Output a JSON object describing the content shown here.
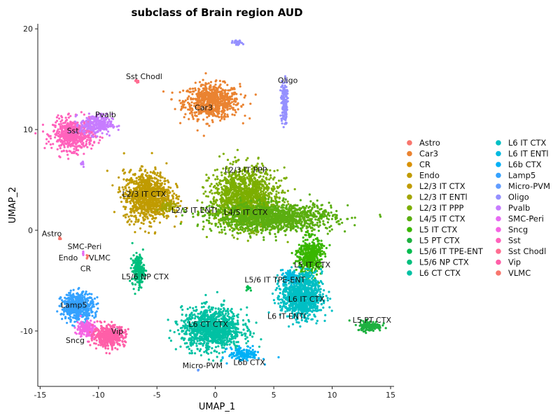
{
  "chart_data": {
    "type": "scatter",
    "title": "subclass of Brain region AUD",
    "xlabel": "UMAP_1",
    "ylabel": "UMAP_2",
    "xlim": [
      -15.2,
      15.3
    ],
    "ylim": [
      -15.5,
      20.5
    ],
    "xticks": [
      -15,
      -10,
      -5,
      0,
      5,
      10,
      15
    ],
    "yticks": [
      -10,
      0,
      10,
      20
    ],
    "grid": false,
    "legend_position": "right",
    "series": [
      {
        "name": "Astro",
        "color": "#F8766D"
      },
      {
        "name": "Car3",
        "color": "#EA8331"
      },
      {
        "name": "CR",
        "color": "#D89000"
      },
      {
        "name": "Endo",
        "color": "#C09B00"
      },
      {
        "name": "L2/3 IT CTX",
        "color": "#C09B00"
      },
      {
        "name": "L2/3 IT ENTl",
        "color": "#A3A500"
      },
      {
        "name": "L2/3 IT PPP",
        "color": "#7CAE00"
      },
      {
        "name": "L4/5 IT CTX",
        "color": "#5BAE10"
      },
      {
        "name": "L5 IT CTX",
        "color": "#39B600"
      },
      {
        "name": "L5 PT CTX",
        "color": "#1EB040"
      },
      {
        "name": "L5/6 IT TPE-ENT",
        "color": "#00BB4E"
      },
      {
        "name": "L5/6 NP CTX",
        "color": "#00BF7D"
      },
      {
        "name": "L6 CT CTX",
        "color": "#00C1A3"
      },
      {
        "name": "L6 IT CTX",
        "color": "#00BFC4"
      },
      {
        "name": "L6 IT ENTl",
        "color": "#00BAE0"
      },
      {
        "name": "L6b CTX",
        "color": "#00B0F6"
      },
      {
        "name": "Lamp5",
        "color": "#35A2FF"
      },
      {
        "name": "Micro-PVM",
        "color": "#619CFF"
      },
      {
        "name": "Oligo",
        "color": "#9590FF"
      },
      {
        "name": "Pvalb",
        "color": "#C77CFF"
      },
      {
        "name": "SMC-Peri",
        "color": "#E76BF3"
      },
      {
        "name": "Sncg",
        "color": "#F564E3"
      },
      {
        "name": "Sst",
        "color": "#FF62BC"
      },
      {
        "name": "Sst Chodl",
        "color": "#FF6C91"
      },
      {
        "name": "Vip",
        "color": "#FF5FA8"
      },
      {
        "name": "VLMC",
        "color": "#F8766D"
      }
    ],
    "clusters": [
      {
        "name": "Car3",
        "color": "#EA8331",
        "x": -0.3,
        "y": 12.8,
        "sx": 1.4,
        "sy": 1.0,
        "n": 700
      },
      {
        "name": "Oligo",
        "color": "#9590FF",
        "x": 5.9,
        "y": 12.7,
        "sx": 0.15,
        "sy": 1.3,
        "n": 160
      },
      {
        "name": "Oligo",
        "color": "#9590FF",
        "x": 1.9,
        "y": 18.6,
        "sx": 0.25,
        "sy": 0.15,
        "n": 30
      },
      {
        "name": "Sst Chodl",
        "color": "#FF6C91",
        "x": -6.7,
        "y": 14.8,
        "sx": 0.12,
        "sy": 0.1,
        "n": 10
      },
      {
        "name": "Sst",
        "color": "#FF62BC",
        "x": -12.2,
        "y": 9.5,
        "sx": 1.0,
        "sy": 0.9,
        "n": 550
      },
      {
        "name": "Pvalb",
        "color": "#C77CFF",
        "x": -10.2,
        "y": 10.5,
        "sx": 0.8,
        "sy": 0.6,
        "n": 260
      },
      {
        "name": "Pvalb",
        "color": "#C77CFF",
        "x": -11.4,
        "y": 6.7,
        "sx": 0.12,
        "sy": 0.25,
        "n": 10
      },
      {
        "name": "L2/3 IT CTX",
        "color": "#C09B00",
        "x": -5.8,
        "y": 3.4,
        "sx": 1.2,
        "sy": 1.4,
        "n": 1000
      },
      {
        "name": "L2/3 IT ENTl",
        "color": "#A3A500",
        "x": -4.0,
        "y": 2.3,
        "sx": 0.4,
        "sy": 0.4,
        "n": 60
      },
      {
        "name": "L2/3 IT PPP",
        "color": "#7CAE00",
        "x": 2.5,
        "y": 3.2,
        "sx": 1.7,
        "sy": 1.7,
        "n": 1400
      },
      {
        "name": "L4/5 IT CTX",
        "color": "#5BAE10",
        "x": 5.0,
        "y": 1.3,
        "sx": 3.0,
        "sy": 0.8,
        "n": 1300
      },
      {
        "name": "L5 IT CTX",
        "color": "#39B600",
        "x": 8.1,
        "y": -2.6,
        "sx": 0.6,
        "sy": 1.1,
        "n": 450
      },
      {
        "name": "L6 IT CTX",
        "color": "#00BFC4",
        "x": 7.4,
        "y": -6.5,
        "sx": 1.0,
        "sy": 1.3,
        "n": 1000
      },
      {
        "name": "L6 IT ENTl",
        "color": "#00BAE0",
        "x": 6.4,
        "y": -4.6,
        "sx": 0.4,
        "sy": 0.4,
        "n": 80
      },
      {
        "name": "L5/6 IT TPE-ENT",
        "color": "#00BB4E",
        "x": 2.8,
        "y": -5.7,
        "sx": 0.1,
        "sy": 0.15,
        "n": 12
      },
      {
        "name": "L5 PT CTX",
        "color": "#1EB040",
        "x": 13.2,
        "y": -9.5,
        "sx": 0.6,
        "sy": 0.3,
        "n": 140
      },
      {
        "name": "L5/6 NP CTX",
        "color": "#00BF7D",
        "x": -6.6,
        "y": -4.0,
        "sx": 0.3,
        "sy": 0.9,
        "n": 200
      },
      {
        "name": "L6 CT CTX",
        "color": "#00C1A3",
        "x": -0.3,
        "y": -9.8,
        "sx": 1.5,
        "sy": 1.2,
        "n": 1100
      },
      {
        "name": "L6b CTX",
        "color": "#00B0F6",
        "x": 2.5,
        "y": -12.3,
        "sx": 0.8,
        "sy": 0.4,
        "n": 140
      },
      {
        "name": "Micro-PVM",
        "color": "#619CFF",
        "x": -1.5,
        "y": -13.9,
        "sx": 0.05,
        "sy": 0.08,
        "n": 4
      },
      {
        "name": "Lamp5",
        "color": "#35A2FF",
        "x": -11.8,
        "y": -7.6,
        "sx": 0.8,
        "sy": 0.8,
        "n": 500
      },
      {
        "name": "Sncg",
        "color": "#F564E3",
        "x": -11.0,
        "y": -9.8,
        "sx": 0.5,
        "sy": 0.5,
        "n": 150
      },
      {
        "name": "Vip",
        "color": "#FF5FA8",
        "x": -9.1,
        "y": -10.5,
        "sx": 0.8,
        "sy": 0.6,
        "n": 450
      },
      {
        "name": "Astro",
        "color": "#F8766D",
        "x": -13.3,
        "y": -0.8,
        "sx": 0.08,
        "sy": 0.06,
        "n": 6
      },
      {
        "name": "SMC-Peri",
        "color": "#E76BF3",
        "x": -11.3,
        "y": -2.3,
        "sx": 0.05,
        "sy": 0.15,
        "n": 6
      },
      {
        "name": "VLMC",
        "color": "#F8766D",
        "x": -11.0,
        "y": -2.7,
        "sx": 0.05,
        "sy": 0.12,
        "n": 5
      }
    ],
    "annotations": [
      {
        "text": "Sst Chodl",
        "x": -6.1,
        "y": 15.3
      },
      {
        "text": "Oligo",
        "x": 6.2,
        "y": 14.9
      },
      {
        "text": "Car3",
        "x": -1.0,
        "y": 12.2
      },
      {
        "text": "Pvalb",
        "x": -9.4,
        "y": 11.5
      },
      {
        "text": "Sst",
        "x": -12.2,
        "y": 9.9
      },
      {
        "text": "L2/3 IT PPP",
        "x": 2.6,
        "y": 6.0
      },
      {
        "text": "L2/3 IT CTX",
        "x": -6.1,
        "y": 3.6
      },
      {
        "text": "L2/3 IT ENTl",
        "x": -1.8,
        "y": 2.0
      },
      {
        "text": "L4/5 IT CTX",
        "x": 2.6,
        "y": 1.8
      },
      {
        "text": "Astro",
        "x": -14.0,
        "y": -0.3
      },
      {
        "text": "SMC-Peri",
        "x": -11.2,
        "y": -1.6
      },
      {
        "text": "Endo",
        "x": -12.6,
        "y": -2.7
      },
      {
        "text": "VLMC",
        "x": -9.9,
        "y": -2.7
      },
      {
        "text": "CR",
        "x": -11.1,
        "y": -3.8
      },
      {
        "text": "L5 IT CTX",
        "x": 8.3,
        "y": -3.4
      },
      {
        "text": "L5/6 NP CTX",
        "x": -6.0,
        "y": -4.6
      },
      {
        "text": "L5/6 IT TPE-ENT",
        "x": 5.1,
        "y": -4.9
      },
      {
        "text": "L6 IT CTX",
        "x": 7.8,
        "y": -6.8
      },
      {
        "text": "Lamp5",
        "x": -12.1,
        "y": -7.4
      },
      {
        "text": "L6 IT ENTl",
        "x": 6.1,
        "y": -8.5
      },
      {
        "text": "L5 PT CTX",
        "x": 13.4,
        "y": -8.9
      },
      {
        "text": "L6 CT CTX",
        "x": -0.6,
        "y": -9.3
      },
      {
        "text": "Vip",
        "x": -8.4,
        "y": -10.0
      },
      {
        "text": "Sncg",
        "x": -12.0,
        "y": -10.9
      },
      {
        "text": "L6b CTX",
        "x": 2.9,
        "y": -13.1
      },
      {
        "text": "Micro-PVM",
        "x": -1.1,
        "y": -13.4
      }
    ]
  }
}
